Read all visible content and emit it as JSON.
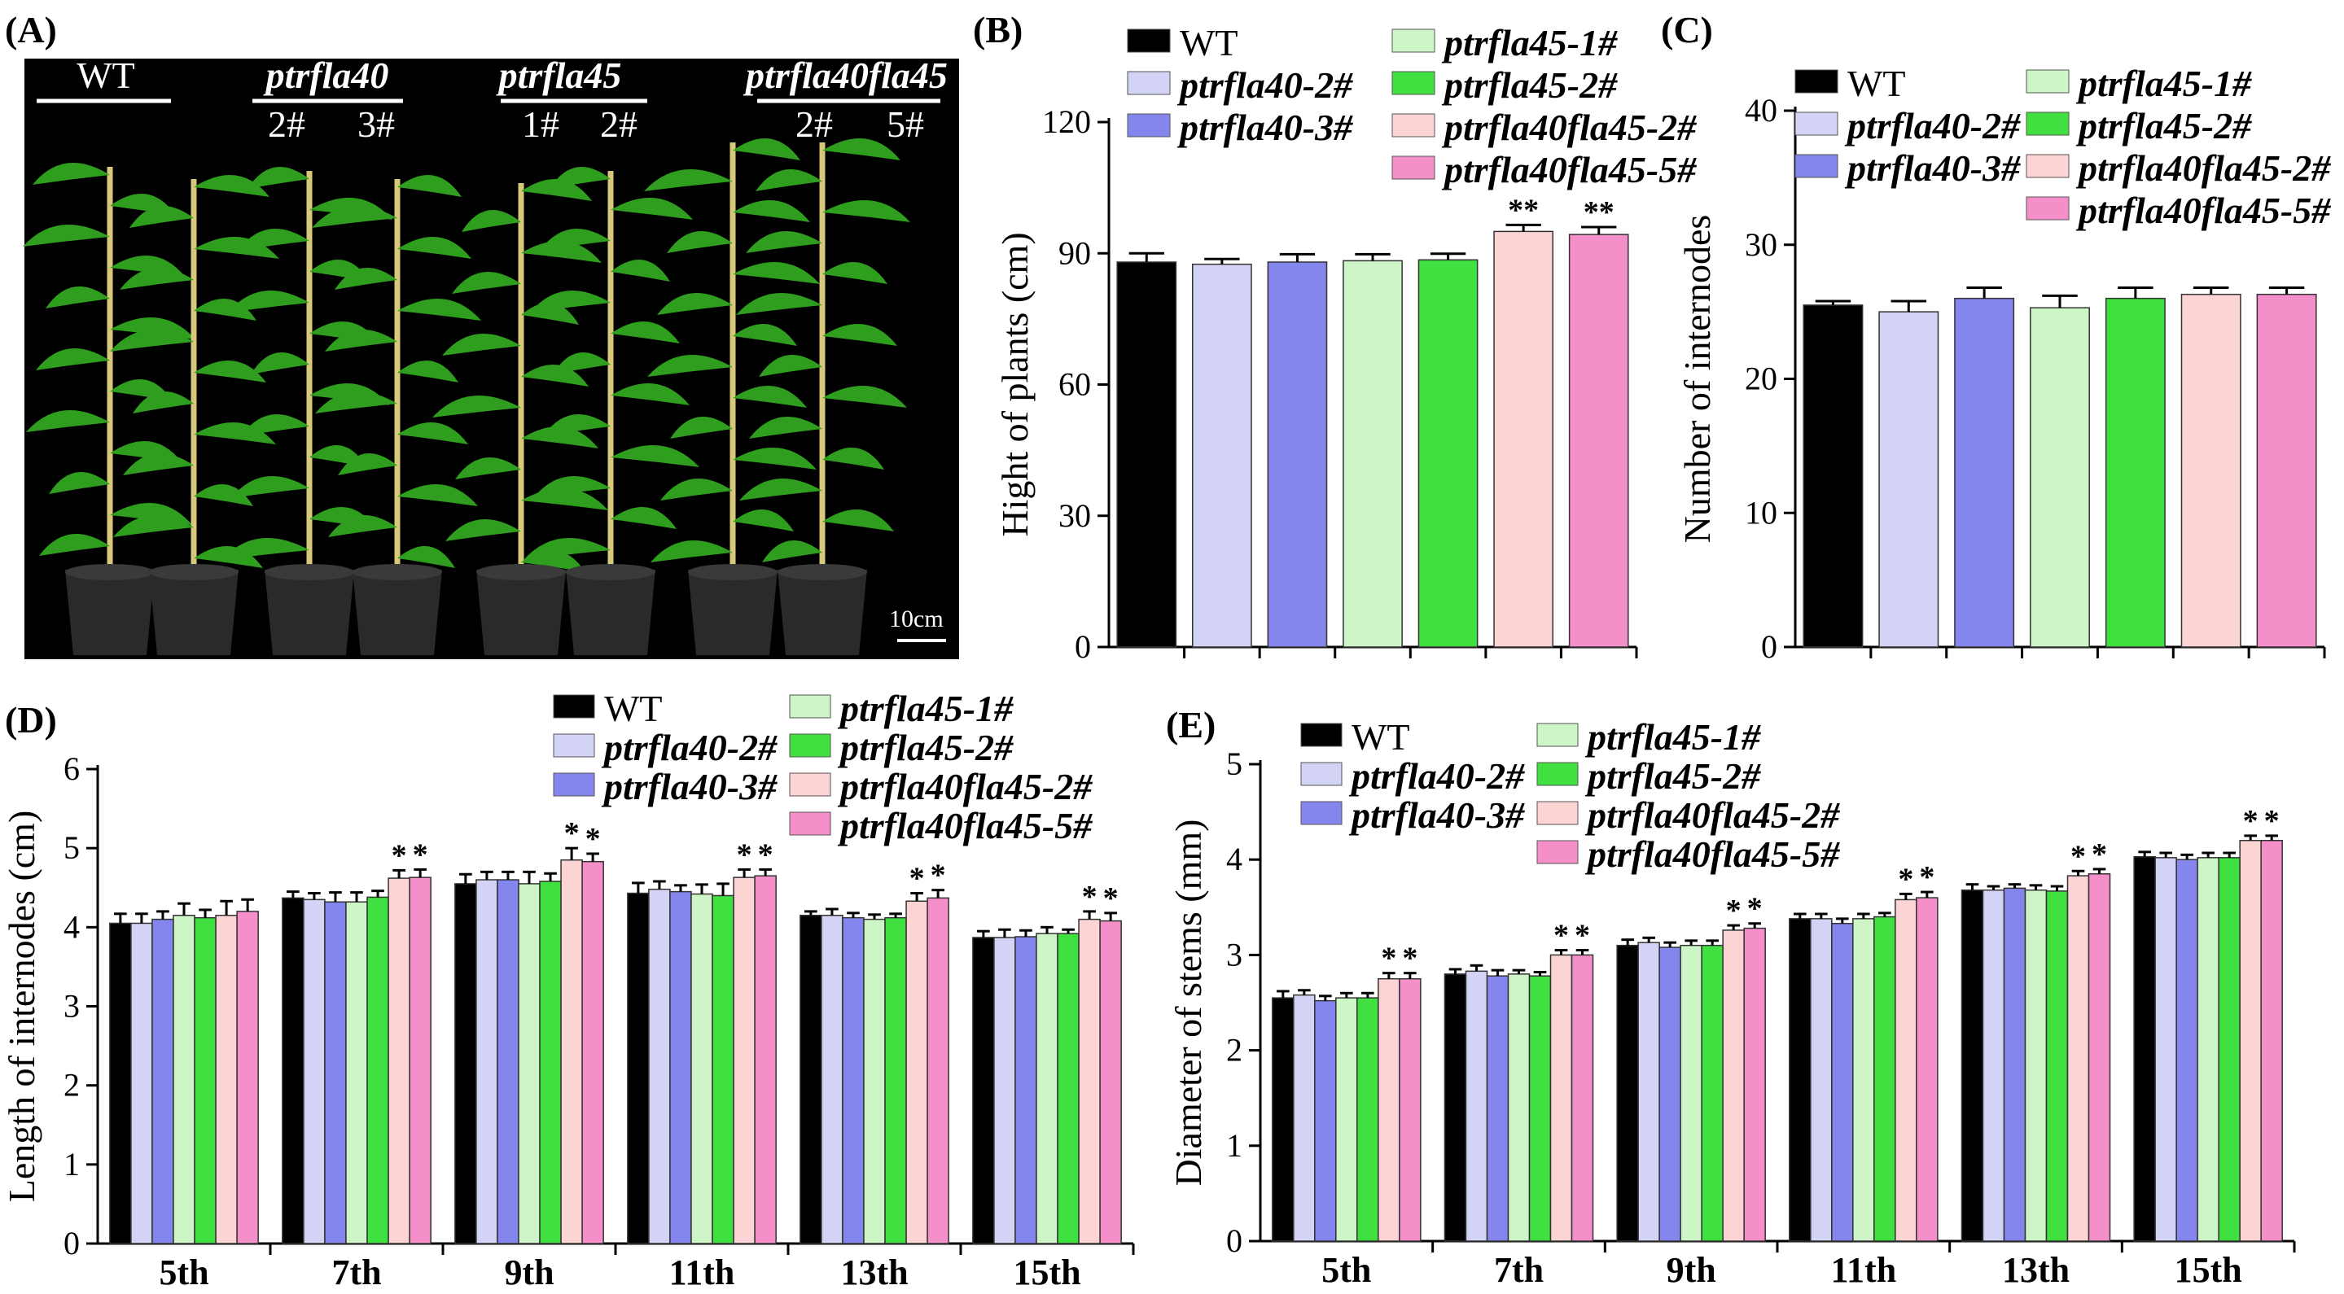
{
  "panel_labels": {
    "A": "(A)",
    "B": "(B)",
    "C": "(C)",
    "D": "(D)",
    "E": "(E)"
  },
  "photo": {
    "groups": [
      {
        "name": "WT",
        "italic": false,
        "lines": []
      },
      {
        "name": "ptrfla40",
        "italic": true,
        "lines": [
          "2#",
          "3#"
        ]
      },
      {
        "name": "ptrfla45",
        "italic": true,
        "lines": [
          "1#",
          "2#"
        ]
      },
      {
        "name": "ptrfla40fla45",
        "italic": true,
        "lines": [
          "2#",
          "5#"
        ]
      }
    ],
    "scale_bar": "10cm",
    "description_colors": {
      "background": "#000000",
      "leaf": "#2f9e1e",
      "stem": "#d8c879",
      "pot": "#2a2a2a"
    }
  },
  "legend": {
    "entries": [
      {
        "label": "WT",
        "italic": false,
        "color": "#000000"
      },
      {
        "label": "ptrfla40-2#",
        "italic": true,
        "color": "#d3d3f5"
      },
      {
        "label": "ptrfla40-3#",
        "italic": true,
        "color": "#8585ee"
      },
      {
        "label": "ptrfla45-1#",
        "italic": true,
        "color": "#cdf5c8"
      },
      {
        "label": "ptrfla45-2#",
        "italic": true,
        "color": "#3fe03f"
      },
      {
        "label": "ptrfla40fla45-2#",
        "italic": true,
        "color": "#fcd4d4"
      },
      {
        "label": "ptrfla40fla45-5#",
        "italic": true,
        "color": "#f58fc9"
      }
    ]
  },
  "chart_data": [
    {
      "id": "B",
      "type": "bar",
      "title": "",
      "xlabel": "",
      "ylabel": "Hight of plants (cm)",
      "ylim": [
        0,
        120
      ],
      "yticks": [
        0,
        30,
        60,
        90,
        120
      ],
      "series": [
        {
          "name": "WT",
          "values": [
            88
          ],
          "errors": [
            2
          ],
          "marks": [
            ""
          ]
        },
        {
          "name": "ptrfla40-2#",
          "values": [
            87.5
          ],
          "errors": [
            1.2
          ],
          "marks": [
            ""
          ]
        },
        {
          "name": "ptrfla40-3#",
          "values": [
            88
          ],
          "errors": [
            1.8
          ],
          "marks": [
            ""
          ]
        },
        {
          "name": "ptrfla45-1#",
          "values": [
            88.3
          ],
          "errors": [
            1.5
          ],
          "marks": [
            ""
          ]
        },
        {
          "name": "ptrfla45-2#",
          "values": [
            88.5
          ],
          "errors": [
            1.4
          ],
          "marks": [
            ""
          ]
        },
        {
          "name": "ptrfla40fla45-2#",
          "values": [
            95
          ],
          "errors": [
            1.5
          ],
          "marks": [
            "**"
          ]
        },
        {
          "name": "ptrfla40fla45-5#",
          "values": [
            94.3
          ],
          "errors": [
            1.7
          ],
          "marks": [
            "**"
          ]
        }
      ]
    },
    {
      "id": "C",
      "type": "bar",
      "title": "",
      "xlabel": "",
      "ylabel": "Number of internodes",
      "ylim": [
        0,
        40
      ],
      "yticks": [
        0,
        10,
        20,
        30,
        40
      ],
      "series": [
        {
          "name": "WT",
          "values": [
            25.5
          ],
          "errors": [
            0.3
          ],
          "marks": [
            ""
          ]
        },
        {
          "name": "ptrfla40-2#",
          "values": [
            25
          ],
          "errors": [
            0.8
          ],
          "marks": [
            ""
          ]
        },
        {
          "name": "ptrfla40-3#",
          "values": [
            26
          ],
          "errors": [
            0.8
          ],
          "marks": [
            ""
          ]
        },
        {
          "name": "ptrfla45-1#",
          "values": [
            25.3
          ],
          "errors": [
            0.9
          ],
          "marks": [
            ""
          ]
        },
        {
          "name": "ptrfla45-2#",
          "values": [
            26
          ],
          "errors": [
            0.8
          ],
          "marks": [
            ""
          ]
        },
        {
          "name": "ptrfla40fla45-2#",
          "values": [
            26.3
          ],
          "errors": [
            0.5
          ],
          "marks": [
            ""
          ]
        },
        {
          "name": "ptrfla40fla45-5#",
          "values": [
            26.3
          ],
          "errors": [
            0.5
          ],
          "marks": [
            ""
          ]
        }
      ]
    },
    {
      "id": "D",
      "type": "bar",
      "title": "",
      "xlabel": "",
      "ylabel": "Length of internodes (cm)",
      "ylim": [
        0,
        6
      ],
      "yticks": [
        0,
        1,
        2,
        3,
        4,
        5,
        6
      ],
      "categories": [
        "5th",
        "7th",
        "9th",
        "11th",
        "13th",
        "15th"
      ],
      "series": [
        {
          "name": "WT",
          "values": [
            4.05,
            4.37,
            4.55,
            4.43,
            4.15,
            3.87
          ],
          "errors": [
            0.12,
            0.08,
            0.12,
            0.13,
            0.05,
            0.08
          ],
          "marks": [
            "",
            "",
            "",
            "",
            "",
            ""
          ]
        },
        {
          "name": "ptrfla40-2#",
          "values": [
            4.05,
            4.35,
            4.6,
            4.48,
            4.15,
            3.87
          ],
          "errors": [
            0.12,
            0.08,
            0.1,
            0.1,
            0.08,
            0.1
          ],
          "marks": [
            "",
            "",
            "",
            "",
            "",
            ""
          ]
        },
        {
          "name": "ptrfla40-3#",
          "values": [
            4.1,
            4.32,
            4.6,
            4.45,
            4.12,
            3.88
          ],
          "errors": [
            0.1,
            0.12,
            0.1,
            0.08,
            0.06,
            0.08
          ],
          "marks": [
            "",
            "",
            "",
            "",
            "",
            ""
          ]
        },
        {
          "name": "ptrfla45-1#",
          "values": [
            4.15,
            4.32,
            4.55,
            4.42,
            4.1,
            3.92
          ],
          "errors": [
            0.15,
            0.12,
            0.15,
            0.12,
            0.06,
            0.08
          ],
          "marks": [
            "",
            "",
            "",
            "",
            "",
            ""
          ]
        },
        {
          "name": "ptrfla45-2#",
          "values": [
            4.12,
            4.38,
            4.58,
            4.4,
            4.12,
            3.92
          ],
          "errors": [
            0.1,
            0.08,
            0.1,
            0.15,
            0.05,
            0.05
          ],
          "marks": [
            "",
            "",
            "",
            "",
            "",
            ""
          ]
        },
        {
          "name": "ptrfla40fla45-2#",
          "values": [
            4.15,
            4.62,
            4.85,
            4.63,
            4.33,
            4.1
          ],
          "errors": [
            0.18,
            0.1,
            0.15,
            0.1,
            0.1,
            0.1
          ],
          "marks": [
            "",
            "*",
            "*",
            "*",
            "*",
            "*"
          ]
        },
        {
          "name": "ptrfla40fla45-5#",
          "values": [
            4.2,
            4.63,
            4.83,
            4.65,
            4.37,
            4.08
          ],
          "errors": [
            0.15,
            0.1,
            0.1,
            0.08,
            0.1,
            0.1
          ],
          "marks": [
            "",
            "*",
            "*",
            "*",
            "*",
            "*"
          ]
        }
      ]
    },
    {
      "id": "E",
      "type": "bar",
      "title": "",
      "xlabel": "",
      "ylabel": "Diameter of stems (mm)",
      "ylim": [
        0,
        5
      ],
      "yticks": [
        0,
        1,
        2,
        3,
        4,
        5
      ],
      "categories": [
        "5th",
        "7th",
        "9th",
        "11th",
        "13th",
        "15th"
      ],
      "series": [
        {
          "name": "WT",
          "values": [
            2.55,
            2.8,
            3.1,
            3.38,
            3.68,
            4.03
          ],
          "errors": [
            0.07,
            0.05,
            0.06,
            0.05,
            0.06,
            0.05
          ],
          "marks": [
            "",
            "",
            "",
            "",
            "",
            ""
          ]
        },
        {
          "name": "ptrfla40-2#",
          "values": [
            2.58,
            2.83,
            3.13,
            3.38,
            3.68,
            4.02
          ],
          "errors": [
            0.05,
            0.06,
            0.05,
            0.05,
            0.04,
            0.05
          ],
          "marks": [
            "",
            "",
            "",
            "",
            "",
            ""
          ]
        },
        {
          "name": "ptrfla40-3#",
          "values": [
            2.52,
            2.78,
            3.08,
            3.33,
            3.7,
            4.0
          ],
          "errors": [
            0.05,
            0.06,
            0.05,
            0.05,
            0.04,
            0.05
          ],
          "marks": [
            "",
            "",
            "",
            "",
            "",
            ""
          ]
        },
        {
          "name": "ptrfla45-1#",
          "values": [
            2.55,
            2.8,
            3.1,
            3.38,
            3.68,
            4.02
          ],
          "errors": [
            0.05,
            0.04,
            0.05,
            0.05,
            0.05,
            0.05
          ],
          "marks": [
            "",
            "",
            "",
            "",
            "",
            ""
          ]
        },
        {
          "name": "ptrfla45-2#",
          "values": [
            2.55,
            2.78,
            3.1,
            3.4,
            3.67,
            4.02
          ],
          "errors": [
            0.05,
            0.04,
            0.05,
            0.04,
            0.05,
            0.05
          ],
          "marks": [
            "",
            "",
            "",
            "",
            "",
            ""
          ]
        },
        {
          "name": "ptrfla40fla45-2#",
          "values": [
            2.75,
            3.0,
            3.26,
            3.58,
            3.83,
            4.2
          ],
          "errors": [
            0.06,
            0.05,
            0.05,
            0.06,
            0.05,
            0.05
          ],
          "marks": [
            "*",
            "*",
            "*",
            "*",
            "*",
            "*"
          ]
        },
        {
          "name": "ptrfla40fla45-5#",
          "values": [
            2.75,
            3.0,
            3.28,
            3.6,
            3.85,
            4.2
          ],
          "errors": [
            0.06,
            0.05,
            0.05,
            0.06,
            0.05,
            0.05
          ],
          "marks": [
            "*",
            "*",
            "*",
            "*",
            "*",
            "*"
          ]
        }
      ]
    }
  ]
}
